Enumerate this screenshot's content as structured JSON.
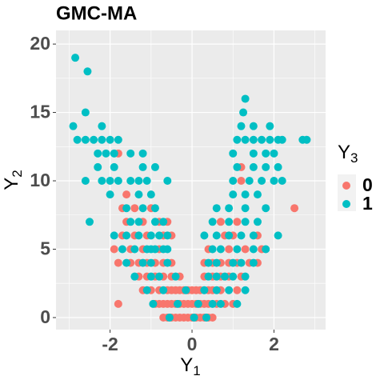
{
  "chart_data": {
    "type": "scatter",
    "title": "GMC-MA",
    "xlabel": "Y",
    "xlabel_sub": "1",
    "ylabel": "Y",
    "ylabel_sub": "2",
    "legend_title": "Y",
    "legend_title_sub": "3",
    "legend": "right",
    "xlim": [
      -3.32,
      3.26
    ],
    "ylim": [
      -0.88,
      21.0
    ],
    "xticks": [
      -2,
      0,
      2
    ],
    "yticks": [
      0,
      5,
      10,
      15,
      20
    ],
    "grid": true,
    "series": [
      {
        "name": "0",
        "color": "#F8766D",
        "x": [
          -0.7,
          -0.6,
          -0.5,
          -0.4,
          -0.3,
          -0.2,
          -0.1,
          0,
          0.1,
          0.2,
          0.3,
          0.4,
          0.5,
          -1.8,
          -0.9,
          -0.8,
          -0.7,
          -0.6,
          -0.5,
          -0.4,
          -0.3,
          -0.2,
          -0.1,
          0,
          0.1,
          0.2,
          0.3,
          0.4,
          0.6,
          0.8,
          1.0,
          -1.2,
          -1.0,
          -0.8,
          -0.6,
          -0.5,
          -0.4,
          -0.3,
          -0.2,
          -0.1,
          0,
          0.1,
          0.2,
          0.4,
          0.5,
          0.7,
          1.1,
          -1.3,
          -1.1,
          -0.9,
          -0.7,
          -0.5,
          -0.3,
          0.3,
          0.5,
          0.7,
          0.9,
          1.2,
          -1.8,
          -1.5,
          -1.3,
          -1.1,
          -0.9,
          -0.7,
          -0.5,
          0.3,
          0.5,
          0.7,
          0.9,
          1.1,
          1.4,
          1.6,
          -1.9,
          -1.5,
          -1.2,
          -0.8,
          0.4,
          0.9,
          1.3,
          1.7,
          -1.7,
          -1.4,
          -1.1,
          -0.7,
          -0.5,
          0.8,
          1.0,
          1.6,
          -1.6,
          -1.2,
          -0.8,
          -0.6,
          0.7,
          1.1,
          -1.7,
          -1.4,
          -1.0,
          2.5,
          -1.6,
          1.2,
          1.2,
          -1.8
        ],
        "y": [
          0,
          0,
          0,
          0,
          0,
          0,
          0,
          0,
          0,
          0,
          0,
          0,
          0,
          1,
          1,
          1,
          1,
          1,
          1,
          1,
          1,
          1,
          1,
          1,
          1,
          1,
          1,
          1,
          1,
          1,
          1,
          2,
          2,
          2,
          2,
          2,
          2,
          2,
          2,
          2,
          2,
          2,
          2,
          2,
          2,
          2,
          2,
          3,
          3,
          3,
          3,
          3,
          3,
          3,
          3,
          3,
          3,
          3,
          4,
          4,
          4,
          4,
          4,
          4,
          4,
          4,
          4,
          4,
          4,
          4,
          4,
          4,
          5,
          5,
          5,
          5,
          5,
          5,
          5,
          5,
          6,
          6,
          6,
          6,
          6,
          6,
          6,
          6,
          7,
          7,
          7,
          7,
          7,
          7,
          8,
          8,
          8,
          8,
          9,
          10,
          11,
          12
        ]
      },
      {
        "name": "1",
        "color": "#00BFC4",
        "x": [
          -0.55,
          0.05,
          0.35,
          -0.95,
          -0.35,
          0.15,
          0.5,
          0.7,
          1.1,
          -1.1,
          -0.7,
          -0.15,
          0.3,
          0.6,
          0.9,
          1.3,
          -1.4,
          -1.0,
          -0.8,
          -0.4,
          0.4,
          0.6,
          0.8,
          1.0,
          1.3,
          -1.6,
          -1.2,
          -1.0,
          -0.6,
          0.4,
          0.6,
          1.0,
          1.2,
          1.5,
          -1.7,
          -1.4,
          -1.1,
          -1.0,
          -0.9,
          -0.7,
          -0.6,
          0.5,
          0.7,
          1.1,
          1.5,
          1.8,
          -1.9,
          -1.6,
          -1.3,
          -1.0,
          -0.8,
          -0.6,
          0.3,
          0.6,
          0.9,
          1.2,
          1.5,
          2.1,
          -2.5,
          -1.5,
          -1.3,
          -0.9,
          -0.7,
          0.5,
          0.9,
          1.3,
          1.6,
          -1.6,
          -1.2,
          -0.9,
          0.6,
          0.9,
          1.3,
          1.8,
          -2.0,
          -1.3,
          -1.0,
          1.0,
          1.3,
          1.6,
          -2.6,
          -2.2,
          -2.0,
          -1.8,
          -1.5,
          -1.3,
          -1.1,
          -0.6,
          1.0,
          1.4,
          1.7,
          2.0,
          2.2,
          -2.3,
          -1.9,
          -1.2,
          -0.9,
          1.1,
          1.5,
          1.8,
          2.1,
          -2.3,
          -2.1,
          -1.9,
          -1.5,
          -1.2,
          1.0,
          1.5,
          1.8,
          2.0,
          -2.8,
          -2.6,
          -2.4,
          -2.2,
          -2.0,
          -1.8,
          1.1,
          1.3,
          1.5,
          1.7,
          1.9,
          2.1,
          2.2,
          2.7,
          2.8,
          -2.9,
          -2.2,
          1.2,
          1.5,
          1.9,
          -2.6,
          1.25,
          1.3,
          -2.55,
          -2.85
        ],
        "y": [
          0,
          0,
          0,
          1,
          1,
          1,
          1,
          1,
          1,
          2,
          2,
          2,
          2,
          2,
          2,
          2,
          3,
          3,
          3,
          3,
          3,
          3,
          3,
          3,
          3,
          4,
          4,
          4,
          4,
          4,
          4,
          4,
          4,
          4,
          5,
          5,
          5,
          5,
          5,
          5,
          5,
          5,
          5,
          5,
          5,
          5,
          6,
          6,
          6,
          6,
          6,
          6,
          6,
          6,
          6,
          6,
          6,
          6,
          7,
          7,
          7,
          7,
          7,
          7,
          7,
          7,
          7,
          8,
          8,
          8,
          8,
          8,
          8,
          8,
          9,
          9,
          9,
          9,
          9,
          9,
          10,
          10,
          10,
          10,
          10,
          10,
          10,
          10,
          10,
          10,
          10,
          10,
          10,
          11,
          11,
          11,
          11,
          11,
          11,
          11,
          11,
          12,
          12,
          12,
          12,
          12,
          12,
          12,
          12,
          12,
          13,
          13,
          13,
          13,
          13,
          13,
          13,
          13,
          13,
          13,
          13,
          13,
          13,
          13,
          13,
          14,
          14,
          14,
          14,
          14,
          15,
          15,
          16,
          18,
          19
        ]
      }
    ]
  }
}
